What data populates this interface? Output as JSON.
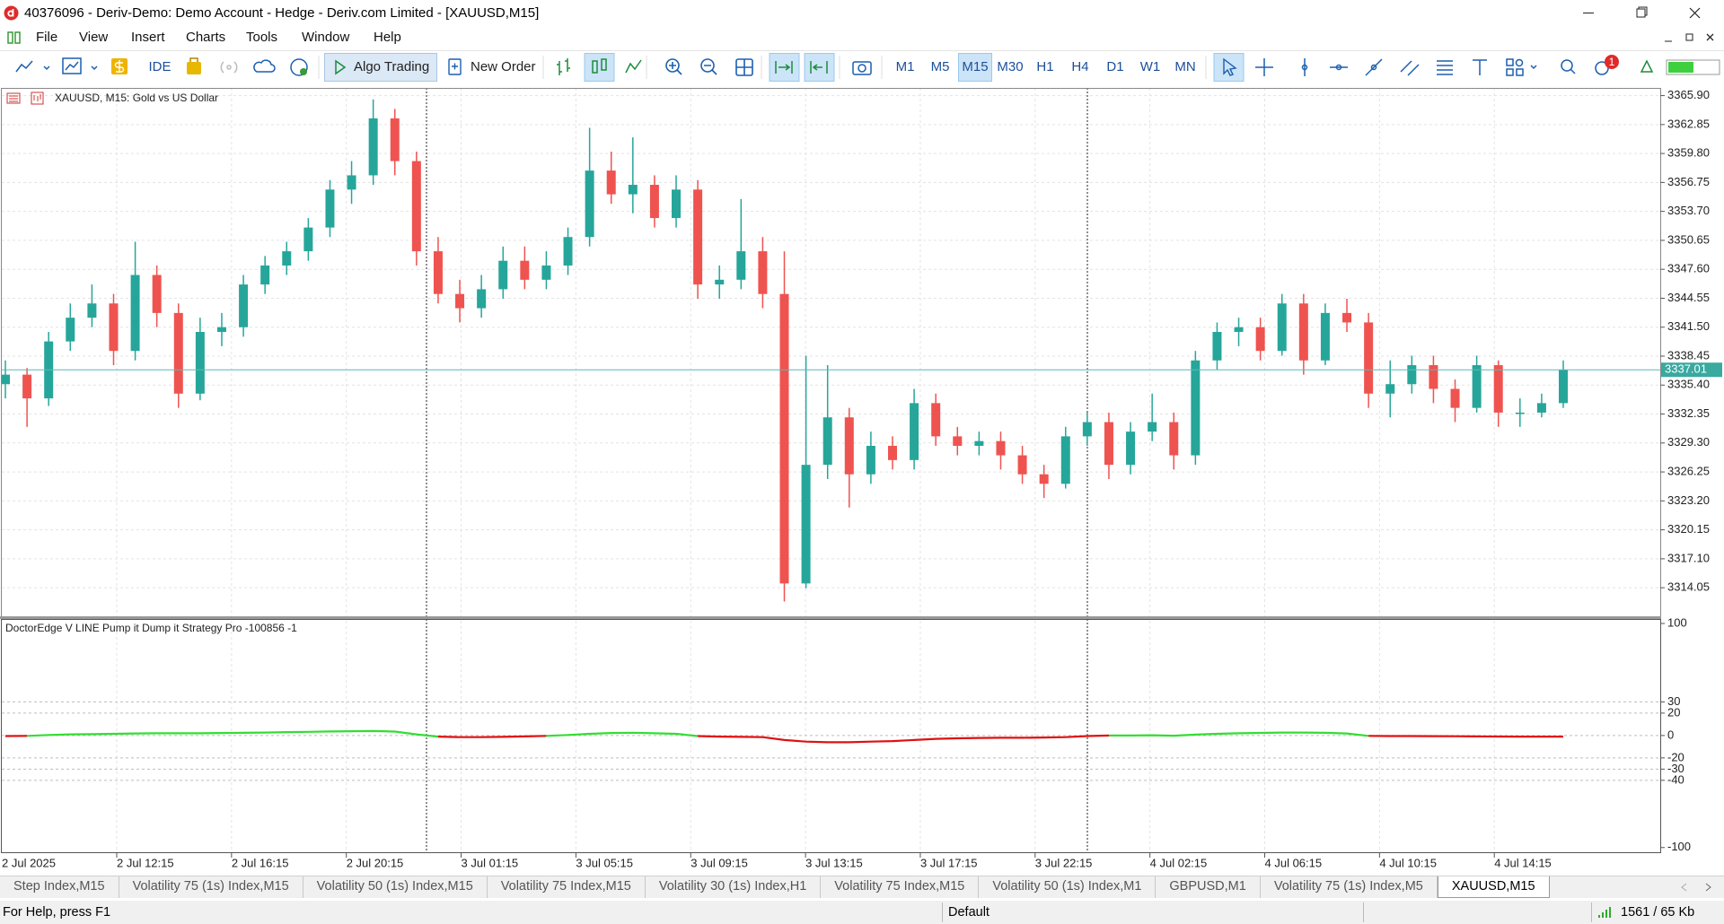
{
  "window": {
    "title": "40376096 - Deriv-Demo: Demo Account - Hedge - Deriv.com Limited - [XAUUSD,M15]"
  },
  "menu": [
    "File",
    "View",
    "Insert",
    "Charts",
    "Tools",
    "Window",
    "Help"
  ],
  "toolbar": {
    "ide": "IDE",
    "algo_trading": "Algo Trading",
    "new_order": "New Order",
    "timeframes": [
      "M1",
      "M5",
      "M15",
      "M30",
      "H1",
      "H4",
      "D1",
      "W1",
      "MN"
    ],
    "active_timeframe": "M15",
    "notifications": 1
  },
  "chart_data": [
    {
      "type": "candlestick",
      "title": "XAUUSD, M15:  Gold vs US Dollar",
      "up_color": "#26a69a",
      "down_color": "#ef5350",
      "open": [
        3335.5,
        3336.5,
        3334.0,
        3340.0,
        3342.5,
        3344.0,
        3339.0,
        3347.0,
        3343.0,
        3334.5,
        3341.0,
        3341.5,
        3346.0,
        3348.0,
        3349.5,
        3352.0,
        3356.0,
        3357.5,
        3363.5,
        3359.0,
        3349.5,
        3345.0,
        3343.5,
        3345.5,
        3348.5,
        3346.5,
        3348.0,
        3351.0,
        3358.0,
        3355.5,
        3356.5,
        3353.0,
        3356.0,
        3346.0,
        3346.5,
        3349.5,
        3345.0,
        3314.5,
        3327.0,
        3332.0,
        3326.0,
        3329.0,
        3327.5,
        3333.5,
        3330.0,
        3329.0,
        3329.5,
        3328.0,
        3326.0,
        3325.0,
        3330.0,
        3331.5,
        3327.0,
        3330.5,
        3331.5,
        3328.0,
        3338.0,
        3341.0,
        3341.5,
        3339.0,
        3344.0,
        3338.0,
        3343.0,
        3342.0,
        3334.5,
        3335.5,
        3337.5,
        3335.0,
        3333.0,
        3337.5,
        3332.5,
        3332.5,
        3333.5
      ],
      "high": [
        3338.0,
        3337.2,
        3341.0,
        3344.0,
        3346.0,
        3345.0,
        3350.5,
        3348.0,
        3344.0,
        3342.5,
        3343.0,
        3347.0,
        3349.0,
        3350.5,
        3353.0,
        3357.0,
        3359.0,
        3365.5,
        3364.5,
        3360.0,
        3351.0,
        3346.5,
        3347.0,
        3350.0,
        3350.0,
        3349.5,
        3352.0,
        3362.5,
        3360.0,
        3361.5,
        3357.5,
        3357.5,
        3357.0,
        3348.0,
        3355.0,
        3351.0,
        3349.5,
        3338.5,
        3337.5,
        3333.0,
        3330.5,
        3330.0,
        3335.0,
        3334.5,
        3331.0,
        3330.5,
        3330.5,
        3329.0,
        3327.0,
        3331.0,
        3332.5,
        3332.5,
        3331.5,
        3334.5,
        3332.5,
        3339.0,
        3342.0,
        3342.5,
        3342.5,
        3345.0,
        3345.0,
        3344.0,
        3344.5,
        3343.0,
        3338.0,
        3338.5,
        3338.5,
        3336.0,
        3338.5,
        3338.0,
        3334.0,
        3334.5,
        3338.0
      ],
      "low": [
        3334.0,
        3331.0,
        3333.2,
        3339.0,
        3341.5,
        3337.5,
        3338.0,
        3341.5,
        3333.0,
        3333.8,
        3339.5,
        3340.5,
        3345.0,
        3347.0,
        3348.5,
        3351.0,
        3354.5,
        3356.5,
        3357.5,
        3348.0,
        3344.0,
        3342.0,
        3342.5,
        3344.5,
        3345.5,
        3345.5,
        3347.0,
        3350.0,
        3354.5,
        3353.5,
        3352.0,
        3352.0,
        3344.5,
        3344.5,
        3345.5,
        3343.5,
        3312.6,
        3314.0,
        3325.5,
        3322.5,
        3325.0,
        3326.5,
        3326.5,
        3329.0,
        3328.0,
        3328.0,
        3326.5,
        3325.0,
        3323.5,
        3324.5,
        3329.0,
        3325.5,
        3326.0,
        3329.5,
        3326.5,
        3327.0,
        3337.0,
        3339.5,
        3338.0,
        3338.5,
        3336.5,
        3337.5,
        3341.0,
        3333.0,
        3332.0,
        3334.5,
        3333.5,
        3331.5,
        3332.5,
        3331.0,
        3331.0,
        3332.0,
        3333.0
      ],
      "close": [
        3336.5,
        3334.0,
        3340.0,
        3342.5,
        3344.0,
        3339.0,
        3347.0,
        3343.0,
        3334.5,
        3341.0,
        3341.5,
        3346.0,
        3348.0,
        3349.5,
        3352.0,
        3356.0,
        3357.5,
        3363.5,
        3359.0,
        3349.5,
        3345.0,
        3343.5,
        3345.5,
        3348.5,
        3346.5,
        3348.0,
        3351.0,
        3358.0,
        3355.5,
        3356.5,
        3353.0,
        3356.0,
        3346.0,
        3346.5,
        3349.5,
        3345.0,
        3314.5,
        3327.0,
        3332.0,
        3326.0,
        3329.0,
        3327.5,
        3333.5,
        3330.0,
        3329.0,
        3329.5,
        3328.0,
        3326.0,
        3325.0,
        3330.0,
        3331.5,
        3327.0,
        3330.5,
        3331.5,
        3328.0,
        3338.0,
        3341.0,
        3341.5,
        3339.0,
        3344.0,
        3338.0,
        3343.0,
        3342.0,
        3334.5,
        3335.5,
        3337.5,
        3335.0,
        3333.0,
        3337.5,
        3332.5,
        3332.5,
        3333.5,
        3337.0
      ],
      "current_price": 3337.01,
      "ylim": [
        3311.04,
        3366.71
      ],
      "yticks": [
        {
          "value": 3365.9,
          "label": "3365.90"
        },
        3362.85,
        {
          "value": 3359.8,
          "label": "3359.80"
        },
        3356.75,
        {
          "value": 3353.7,
          "label": "3353.70"
        },
        3350.65,
        {
          "value": 3347.6,
          "label": "3347.60"
        },
        3344.55,
        {
          "value": 3341.5,
          "label": "3341.50"
        },
        3338.45,
        {
          "value": 3335.4,
          "label": "3335.40"
        },
        3332.35,
        {
          "value": 3329.3,
          "label": "3329.30"
        },
        3326.25,
        {
          "value": 3323.2,
          "label": "3323.20"
        },
        3320.15,
        {
          "value": 3317.1,
          "label": "3317.10"
        },
        3314.05
      ],
      "x_labels": [
        "2 Jul 2025",
        "2 Jul 12:15",
        "2 Jul 16:15",
        "2 Jul 20:15",
        "3 Jul 01:15",
        "3 Jul 05:15",
        "3 Jul 09:15",
        "3 Jul 13:15",
        "3 Jul 17:15",
        "3 Jul 22:15",
        "4 Jul 02:15",
        "4 Jul 06:15",
        "4 Jul 10:15",
        "4 Jul 14:15"
      ],
      "grid": true
    },
    {
      "type": "line",
      "title": "DoctorEdge V LINE Pump it Dump it Strategy Pro -100856 -1",
      "positive_color": "#33dd33",
      "negative_color": "#e01010",
      "values": [
        -0.5,
        -0.3,
        0.5,
        1.0,
        1.2,
        1.5,
        1.8,
        2.0,
        2.0,
        2.0,
        2.2,
        2.4,
        2.6,
        3.0,
        3.3,
        3.6,
        3.8,
        4.0,
        3.5,
        1.0,
        -1.0,
        -1.5,
        -1.5,
        -1.2,
        -0.8,
        -0.3,
        0.5,
        1.5,
        2.2,
        2.5,
        2.0,
        1.5,
        -0.5,
        -1.0,
        -1.2,
        -1.5,
        -4.0,
        -5.5,
        -6.0,
        -6.0,
        -5.5,
        -5.0,
        -4.0,
        -3.0,
        -2.5,
        -2.2,
        -2.0,
        -2.0,
        -1.8,
        -1.5,
        -0.5,
        0.0,
        0.0,
        0.2,
        -0.2,
        0.8,
        1.5,
        2.0,
        2.3,
        2.6,
        2.6,
        2.4,
        1.8,
        -0.3,
        -0.5,
        -0.5,
        -0.6,
        -0.7,
        -0.8,
        -0.9,
        -1.0,
        -1.0,
        -1.0
      ],
      "ylim": [
        -105,
        104
      ],
      "yticks": [
        100,
        30,
        20,
        0,
        -20,
        -30,
        -40,
        -100
      ]
    }
  ],
  "tabs": [
    "Step Index,M15",
    "Volatility 75 (1s) Index,M15",
    "Volatility 50 (1s) Index,M15",
    "Volatility 75 Index,M15",
    "Volatility 30 (1s) Index,H1",
    "Volatility 75 Index,M15",
    "Volatility 50 (1s) Index,M1",
    "GBPUSD,M1",
    "Volatility 75 (1s) Index,M5",
    "XAUUSD,M15"
  ],
  "active_tab": "XAUUSD,M15",
  "status": {
    "help": "For Help, press F1",
    "profile": "Default",
    "traffic": "1561 / 65 Kb"
  }
}
